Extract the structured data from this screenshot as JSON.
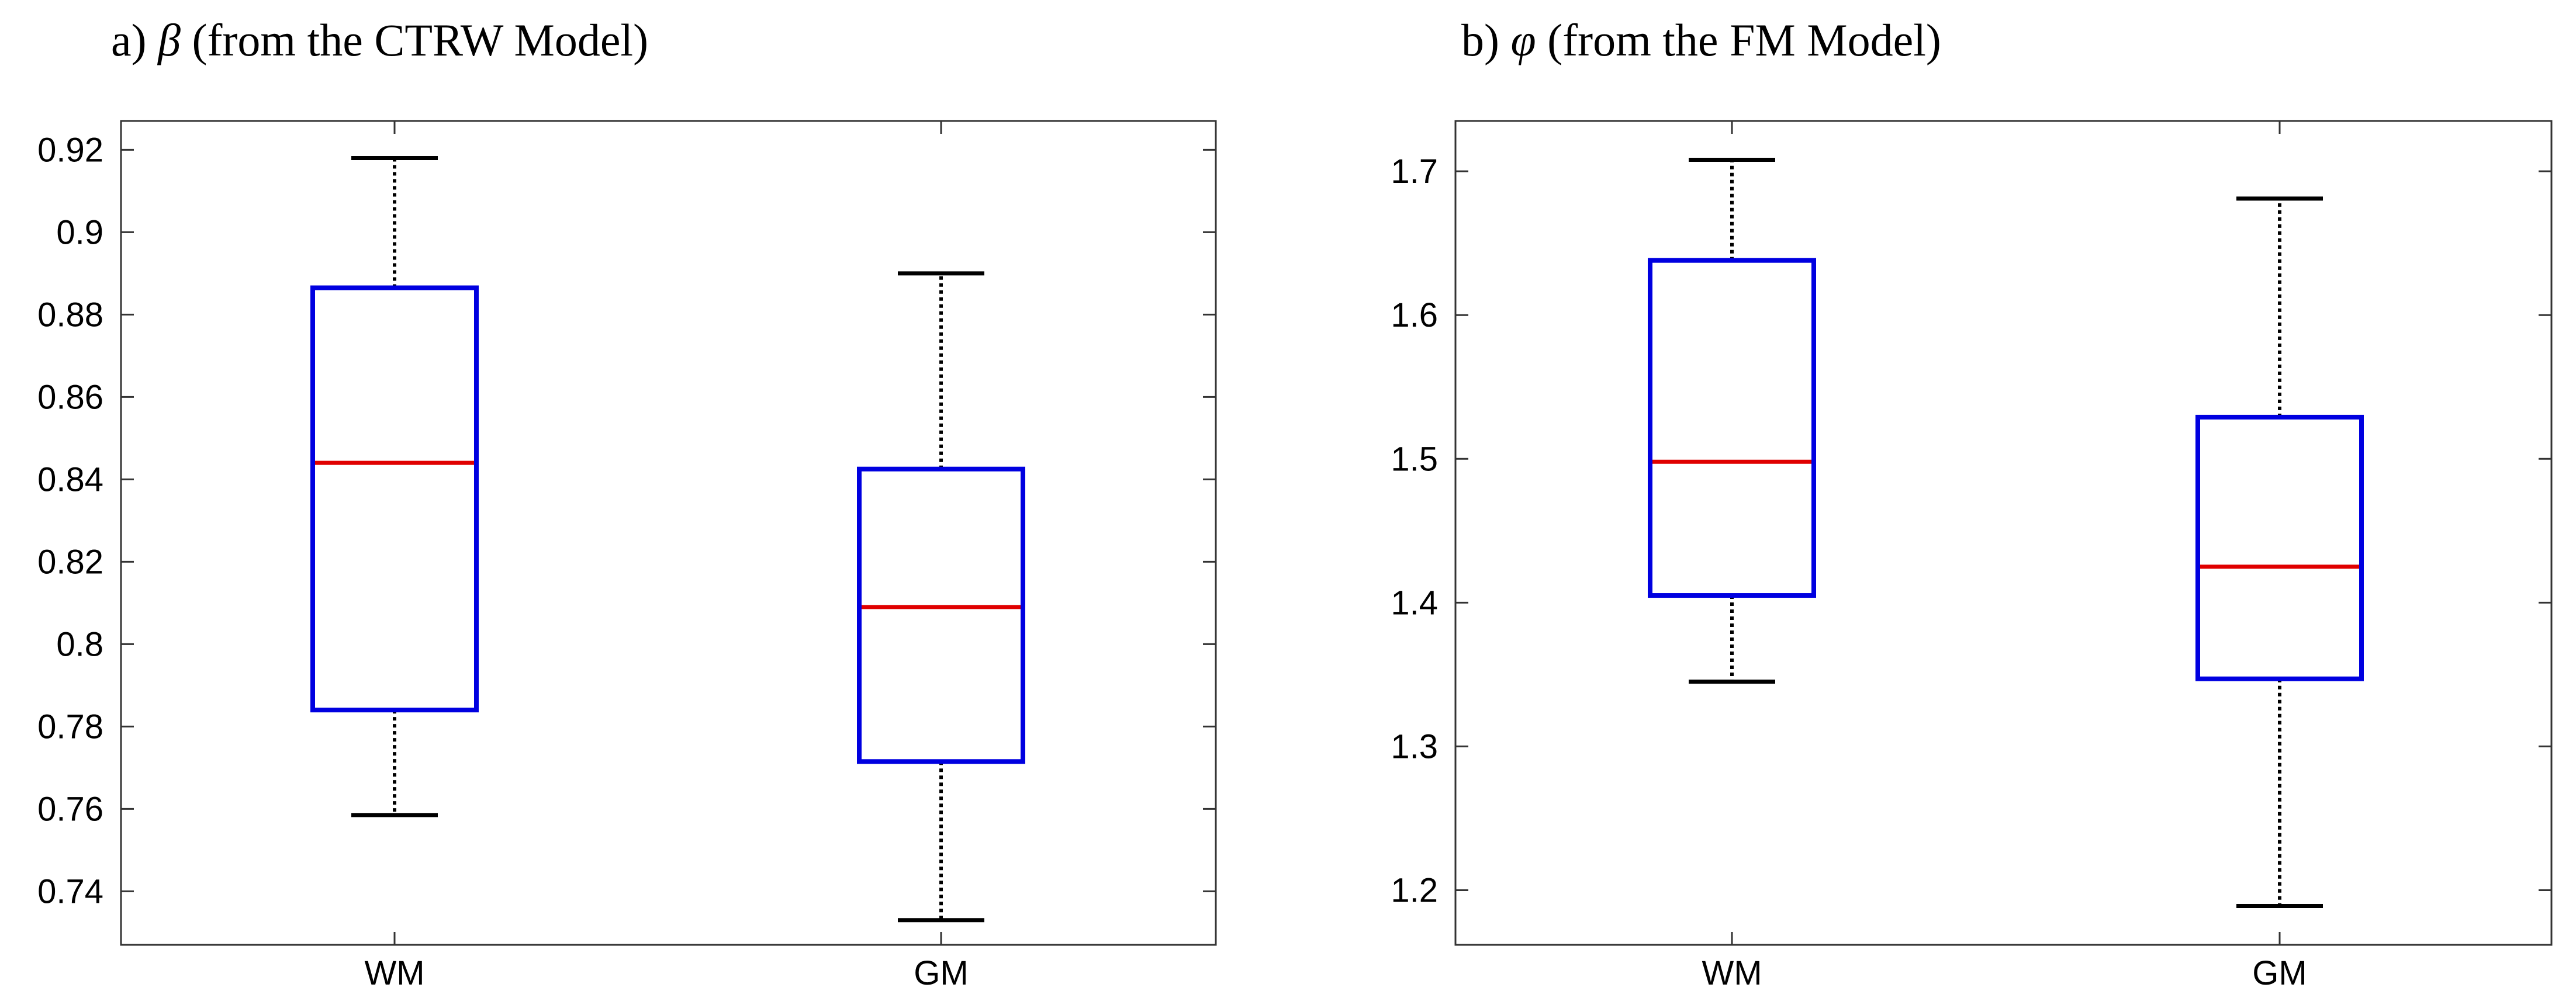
{
  "colors": {
    "box": "#0000e0",
    "median": "#e00000",
    "whisker": "#000000",
    "axis": "#333333"
  },
  "chart_data": [
    {
      "type": "box",
      "title_prefix": "a)",
      "title_symbol": "β",
      "title_suffix": "(from the CTRW Model)",
      "categories": [
        "WM",
        "GM"
      ],
      "ylim": [
        0.727,
        0.927
      ],
      "yticks": [
        0.74,
        0.76,
        0.78,
        0.8,
        0.82,
        0.84,
        0.86,
        0.88,
        0.9,
        0.92
      ],
      "ytick_labels": [
        "0.74",
        "0.76",
        "0.78",
        "0.8",
        "0.82",
        "0.84",
        "0.86",
        "0.88",
        "0.9",
        "0.92"
      ],
      "grid": false,
      "boxes": [
        {
          "label": "WM",
          "whisker_low": 0.7585,
          "q1": 0.784,
          "median": 0.844,
          "q3": 0.8865,
          "whisker_high": 0.918
        },
        {
          "label": "GM",
          "whisker_low": 0.733,
          "q1": 0.7715,
          "median": 0.809,
          "q3": 0.8425,
          "whisker_high": 0.89
        }
      ]
    },
    {
      "type": "box",
      "title_prefix": "b)",
      "title_symbol": "φ",
      "title_suffix": "(from the FM Model)",
      "categories": [
        "WM",
        "GM"
      ],
      "ylim": [
        1.162,
        1.735
      ],
      "yticks": [
        1.2,
        1.3,
        1.4,
        1.5,
        1.6,
        1.7
      ],
      "ytick_labels": [
        "1.2",
        "1.3",
        "1.4",
        "1.5",
        "1.6",
        "1.7"
      ],
      "grid": false,
      "boxes": [
        {
          "label": "WM",
          "whisker_low": 1.345,
          "q1": 1.405,
          "median": 1.498,
          "q3": 1.638,
          "whisker_high": 1.708
        },
        {
          "label": "GM",
          "whisker_low": 1.189,
          "q1": 1.347,
          "median": 1.425,
          "q3": 1.529,
          "whisker_high": 1.681
        }
      ]
    }
  ]
}
